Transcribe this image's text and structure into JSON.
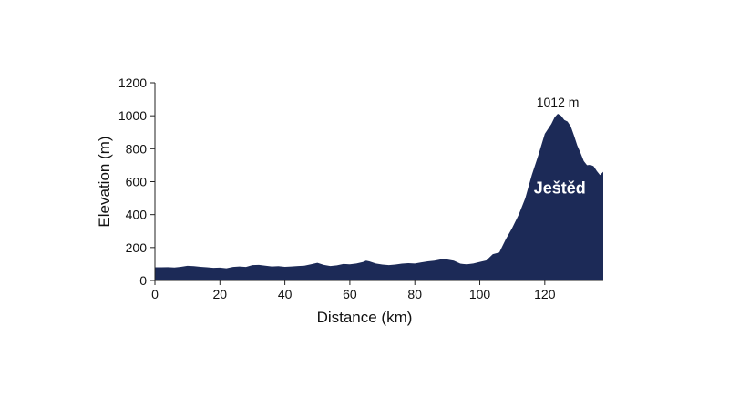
{
  "chart_data": {
    "type": "area",
    "xlabel": "Distance (km)",
    "ylabel": "Elevation (m)",
    "xlim": [
      0,
      138
    ],
    "ylim": [
      0,
      1200
    ],
    "xticks": [
      0,
      20,
      40,
      60,
      80,
      100,
      120
    ],
    "yticks": [
      0,
      200,
      400,
      600,
      800,
      1000,
      1200
    ],
    "grid": false,
    "fill_color": "#1c2a57",
    "annotations": [
      {
        "text": "1012 m",
        "x": 124,
        "y": 1012
      },
      {
        "text": "Ještěd",
        "x": 126,
        "y": 560
      }
    ],
    "series": [
      {
        "x": [
          0,
          2,
          4,
          6,
          8,
          10,
          12,
          14,
          16,
          18,
          20,
          22,
          24,
          26,
          28,
          30,
          32,
          34,
          36,
          38,
          40,
          42,
          44,
          46,
          48,
          50,
          52,
          54,
          56,
          58,
          60,
          62,
          64,
          65,
          66,
          68,
          70,
          72,
          74,
          76,
          78,
          80,
          82,
          84,
          86,
          88,
          90,
          92,
          94,
          96,
          98,
          100,
          102,
          104,
          106,
          108,
          110,
          112,
          114,
          116,
          118,
          120,
          122,
          123,
          124,
          125,
          126,
          127,
          128,
          129,
          130,
          131,
          132,
          133,
          134,
          135,
          136,
          137,
          138
        ],
        "y": [
          80,
          80,
          81,
          79,
          83,
          89,
          87,
          83,
          80,
          77,
          78,
          74,
          82,
          85,
          82,
          93,
          95,
          90,
          85,
          87,
          83,
          85,
          88,
          90,
          98,
          107,
          95,
          88,
          92,
          100,
          98,
          103,
          112,
          120,
          116,
          103,
          97,
          93,
          97,
          102,
          105,
          103,
          110,
          116,
          120,
          128,
          127,
          120,
          102,
          98,
          103,
          113,
          122,
          160,
          170,
          250,
          320,
          400,
          500,
          640,
          760,
          890,
          950,
          990,
          1012,
          1000,
          975,
          965,
          935,
          880,
          820,
          775,
          725,
          700,
          702,
          695,
          665,
          640,
          660
        ]
      }
    ]
  }
}
